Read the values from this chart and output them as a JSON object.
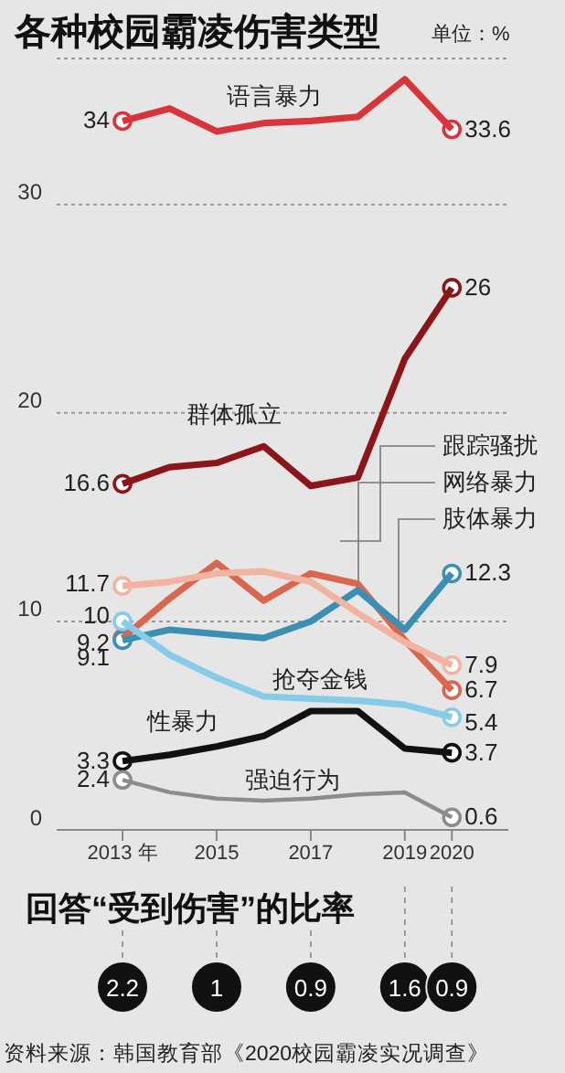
{
  "chart_data": [
    {
      "type": "line",
      "title": "各种校园霸凌伤害类型",
      "subtitle": "单位：%",
      "x": [
        2013,
        2014,
        2015,
        2016,
        2017,
        2018,
        2019,
        2020
      ],
      "xlim": [
        2011.6,
        2021.2
      ],
      "xticks": [
        {
          "value": 2013,
          "label": "2013 年"
        },
        2015,
        2017,
        2019,
        2020
      ],
      "ylim": [
        0,
        37
      ],
      "yticks": [
        0,
        10,
        20,
        30
      ],
      "grid": "y",
      "legend": false,
      "series": [
        {
          "name": "语言暴力",
          "color": "#d8343a",
          "values": [
            34,
            34.6,
            33.5,
            33.9,
            34.0,
            34.2,
            36.0,
            33.6
          ],
          "value_labels": [
            "34",
            null,
            null,
            null,
            null,
            null,
            null,
            "33.6"
          ]
        },
        {
          "name": "群体孤立",
          "color": "#8b1519",
          "values": [
            16.6,
            17.4,
            17.6,
            18.4,
            16.5,
            16.9,
            22.6,
            26
          ],
          "value_labels": [
            "16.6",
            null,
            null,
            null,
            null,
            null,
            null,
            "26"
          ]
        },
        {
          "name": "跟踪骚扰",
          "color": "#d9664f",
          "values": [
            9.2,
            11.1,
            12.8,
            11.0,
            12.3,
            11.8,
            9.1,
            6.7
          ],
          "value_labels": [
            "9.2",
            null,
            null,
            null,
            null,
            null,
            null,
            "6.7"
          ]
        },
        {
          "name": "网络暴力",
          "color": "#3b8fb3",
          "values": [
            9.1,
            9.6,
            9.4,
            9.2,
            10.0,
            11.5,
            9.6,
            12.3
          ],
          "value_labels": [
            "9.1",
            null,
            null,
            null,
            null,
            null,
            null,
            "12.3"
          ]
        },
        {
          "name": "肢体暴力",
          "color": "#f2b4a0",
          "values": [
            11.7,
            11.9,
            12.3,
            12.4,
            11.9,
            10.4,
            9.0,
            7.9
          ],
          "value_labels": [
            "11.7",
            null,
            null,
            null,
            null,
            null,
            null,
            "7.9"
          ]
        },
        {
          "name": "抢夺金钱",
          "color": "#86cce8",
          "values": [
            10,
            8.4,
            7.3,
            6.4,
            6.3,
            6.2,
            6.0,
            5.4
          ],
          "value_labels": [
            "10",
            null,
            null,
            null,
            null,
            null,
            null,
            "5.4"
          ]
        },
        {
          "name": "性暴力",
          "color": "#111111",
          "values": [
            3.3,
            3.6,
            4.0,
            4.5,
            5.7,
            5.7,
            3.9,
            3.7
          ],
          "value_labels": [
            "3.3",
            null,
            null,
            null,
            null,
            null,
            null,
            "3.7"
          ]
        },
        {
          "name": "强迫行为",
          "color": "#8c8c8c",
          "values": [
            2.4,
            1.8,
            1.5,
            1.4,
            1.5,
            1.7,
            1.8,
            0.6
          ],
          "value_labels": [
            "2.4",
            null,
            null,
            null,
            null,
            null,
            null,
            "0.6"
          ]
        }
      ]
    },
    {
      "type": "other",
      "title": "回答“受到伤害”的比率",
      "categories": [
        null,
        null,
        null,
        null,
        null
      ],
      "values": [
        2.2,
        1,
        0.9,
        1.6,
        0.9
      ],
      "data_labels": true,
      "annotations": [
        "资料来源：韩国教育部《2020校园霸凌实况调查》"
      ]
    }
  ]
}
